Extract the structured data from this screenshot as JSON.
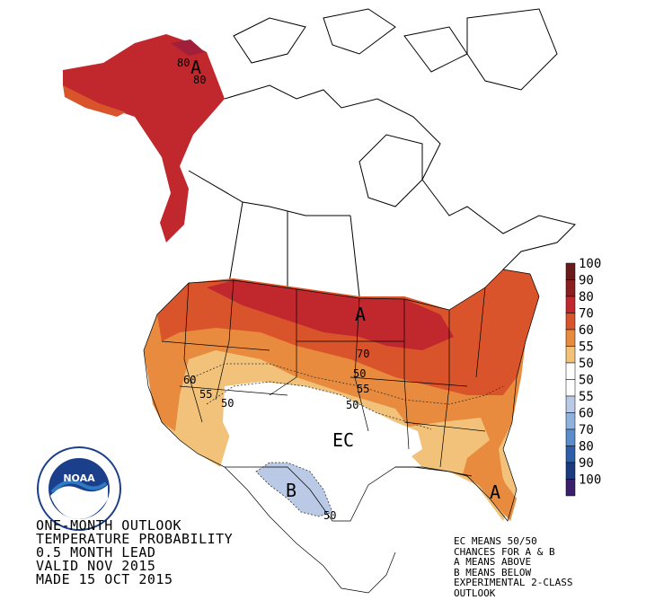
{
  "title": {
    "line1": "ONE-MONTH OUTLOOK",
    "line2": "TEMPERATURE PROBABILITY",
    "line3": "0.5 MONTH LEAD",
    "line4": "VALID NOV 2015",
    "line5": "MADE 15 OCT 2015"
  },
  "notes": {
    "line1": "EC MEANS 50/50",
    "line2": "CHANCES FOR A & B",
    "line3": "A MEANS ABOVE",
    "line4": "B MEANS BELOW",
    "line5": "EXPERIMENTAL 2-CLASS",
    "line6": "OUTLOOK"
  },
  "legend": [
    {
      "label": "100",
      "color": "#6b1a1a"
    },
    {
      "label": "90",
      "color": "#8a1f1f"
    },
    {
      "label": "80",
      "color": "#c0282d"
    },
    {
      "label": "70",
      "color": "#d9542b"
    },
    {
      "label": "60",
      "color": "#e88b3e"
    },
    {
      "label": "55",
      "color": "#f2c27a"
    },
    {
      "label": "50",
      "color": "#ffffff"
    },
    {
      "label": "50",
      "color": "#ffffff"
    },
    {
      "label": "55",
      "color": "#b9c9e6"
    },
    {
      "label": "60",
      "color": "#8fb2dd"
    },
    {
      "label": "70",
      "color": "#5b8ccc"
    },
    {
      "label": "80",
      "color": "#2c5fa8"
    },
    {
      "label": "90",
      "color": "#1c3a80"
    },
    {
      "label": "100",
      "color": "#3a1f6b"
    }
  ],
  "map_labels": {
    "alaska_a": "A",
    "alaska_80a": "80",
    "alaska_80b": "80",
    "north_a": "A",
    "n70": "70",
    "n50a": "50",
    "n55": "55",
    "n50b": "50",
    "west60": "60",
    "west55": "55",
    "west50": "50",
    "ec": "EC",
    "b": "B",
    "b50": "50",
    "se_a": "A"
  },
  "logo": {
    "text": "NOAA"
  },
  "colors": {
    "above80": "#c0282d",
    "above70": "#d9542b",
    "above60": "#e88b3e",
    "above55": "#f2c27a",
    "below55": "#b9c9e6",
    "outline": "#000000"
  }
}
